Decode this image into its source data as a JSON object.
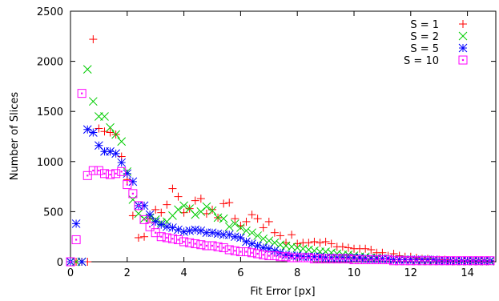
{
  "chart_data": {
    "type": "scatter",
    "xlabel": "Fit Error [px]",
    "ylabel": "Number of Slices",
    "xlim": [
      0,
      15
    ],
    "ylim": [
      0,
      2500
    ],
    "xticks": [
      0,
      2,
      4,
      6,
      8,
      10,
      12,
      14
    ],
    "xtick_labels": [
      "0",
      "2",
      "4",
      "6",
      "8",
      "10",
      "12",
      "14"
    ],
    "yticks": [
      0,
      500,
      1000,
      1500,
      2000,
      2500
    ],
    "ytick_labels": [
      "0",
      "500",
      "1000",
      "1500",
      "2000",
      "2500"
    ],
    "grid": false,
    "legend_position": "top-right",
    "x": [
      0.0,
      0.2,
      0.4,
      0.6,
      0.8,
      1.0,
      1.2,
      1.4,
      1.6,
      1.8,
      2.0,
      2.2,
      2.4,
      2.6,
      2.8,
      3.0,
      3.2,
      3.4,
      3.6,
      3.8,
      4.0,
      4.2,
      4.4,
      4.6,
      4.8,
      5.0,
      5.2,
      5.4,
      5.6,
      5.8,
      6.0,
      6.2,
      6.4,
      6.6,
      6.8,
      7.0,
      7.2,
      7.4,
      7.6,
      7.8,
      8.0,
      8.2,
      8.4,
      8.6,
      8.8,
      9.0,
      9.2,
      9.4,
      9.6,
      9.8,
      10.0,
      10.2,
      10.4,
      10.6,
      10.8,
      11.0,
      11.2,
      11.4,
      11.6,
      11.8,
      12.0,
      12.2,
      12.4,
      12.6,
      12.8,
      13.0,
      13.2,
      13.4,
      13.6,
      13.8,
      14.0,
      14.2,
      14.4,
      14.6,
      14.8
    ],
    "series": [
      {
        "name": "S = 1",
        "marker": "plus",
        "color": "#ff0000",
        "values": [
          0,
          0,
          0,
          0,
          2220,
          1330,
          1300,
          1290,
          1270,
          1050,
          820,
          460,
          240,
          250,
          430,
          520,
          490,
          570,
          730,
          650,
          490,
          530,
          610,
          630,
          480,
          520,
          440,
          580,
          590,
          430,
          360,
          400,
          470,
          430,
          340,
          400,
          290,
          260,
          190,
          270,
          180,
          190,
          190,
          200,
          190,
          200,
          180,
          150,
          150,
          140,
          130,
          130,
          130,
          120,
          90,
          90,
          60,
          80,
          60,
          50,
          50,
          40,
          30,
          30,
          20,
          20,
          20,
          10,
          10,
          10,
          10,
          10,
          10,
          10,
          10
        ]
      },
      {
        "name": "S = 2",
        "marker": "cross",
        "color": "#00cc00",
        "values": [
          0,
          0,
          0,
          1920,
          1600,
          1450,
          1450,
          1340,
          1270,
          1200,
          900,
          620,
          480,
          430,
          440,
          420,
          390,
          400,
          460,
          520,
          560,
          530,
          470,
          500,
          550,
          510,
          440,
          430,
          350,
          380,
          340,
          310,
          290,
          260,
          230,
          210,
          190,
          170,
          160,
          150,
          140,
          130,
          120,
          110,
          100,
          100,
          90,
          80,
          70,
          70,
          60,
          50,
          50,
          40,
          40,
          30,
          30,
          20,
          20,
          20,
          20,
          10,
          10,
          10,
          10,
          10,
          10,
          10,
          5,
          5,
          5,
          5,
          5,
          5,
          5
        ]
      },
      {
        "name": "S = 5",
        "marker": "star",
        "color": "#0000ff",
        "values": [
          0,
          380,
          0,
          1320,
          1290,
          1160,
          1100,
          1100,
          1080,
          990,
          880,
          800,
          560,
          560,
          470,
          400,
          370,
          350,
          340,
          320,
          300,
          310,
          320,
          310,
          290,
          290,
          280,
          270,
          270,
          250,
          240,
          200,
          180,
          160,
          140,
          130,
          110,
          90,
          70,
          60,
          60,
          50,
          50,
          50,
          50,
          40,
          40,
          40,
          40,
          40,
          40,
          40,
          30,
          30,
          30,
          30,
          30,
          20,
          20,
          20,
          20,
          20,
          20,
          20,
          20,
          10,
          10,
          10,
          10,
          10,
          10,
          10,
          10,
          10,
          10
        ]
      },
      {
        "name": "S = 10",
        "marker": "box-dot",
        "color": "#ff00ff",
        "values": [
          0,
          220,
          1680,
          860,
          910,
          910,
          880,
          870,
          880,
          900,
          770,
          680,
          560,
          420,
          350,
          290,
          250,
          240,
          230,
          220,
          200,
          190,
          180,
          170,
          160,
          160,
          150,
          140,
          120,
          110,
          100,
          100,
          90,
          80,
          70,
          60,
          60,
          50,
          50,
          40,
          40,
          40,
          40,
          30,
          30,
          30,
          30,
          30,
          30,
          30,
          20,
          20,
          20,
          20,
          20,
          20,
          20,
          10,
          10,
          10,
          10,
          10,
          10,
          10,
          10,
          10,
          10,
          10,
          10,
          10,
          10,
          10,
          10,
          10,
          10
        ]
      }
    ]
  }
}
